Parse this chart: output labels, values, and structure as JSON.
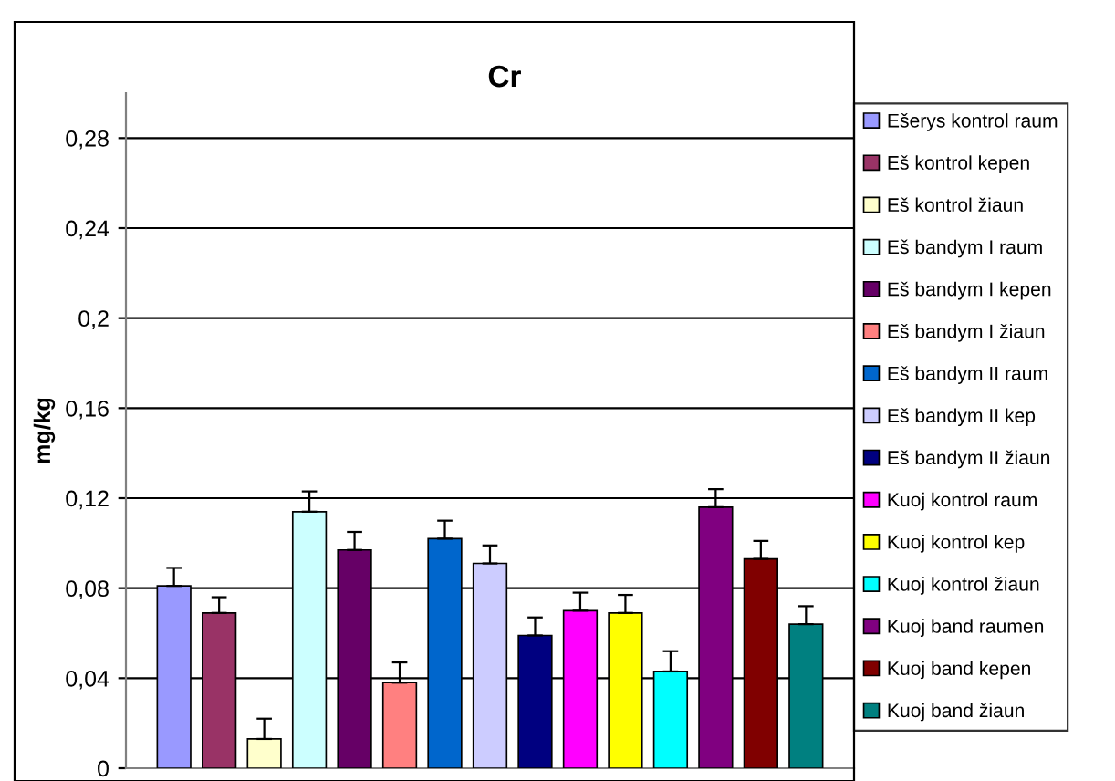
{
  "chart_data": {
    "type": "bar",
    "title": "Cr",
    "ylabel": "mg/kg",
    "categories": [
      null
    ],
    "series": [
      {
        "name": "Ešerys kontrol raum",
        "color": "#9999ff",
        "values": [
          0.081
        ],
        "errors": [
          [
            0.081,
            0.089
          ]
        ]
      },
      {
        "name": "Eš kontrol kepen",
        "color": "#993366",
        "values": [
          0.069
        ],
        "errors": [
          [
            0.069,
            0.076
          ]
        ]
      },
      {
        "name": "Eš kontrol žiaun",
        "color": "#ffffcc",
        "values": [
          0.013
        ],
        "errors": [
          [
            0.013,
            0.022
          ]
        ]
      },
      {
        "name": "Eš bandym I raum",
        "color": "#ccffff",
        "values": [
          0.114
        ],
        "errors": [
          [
            0.114,
            0.123
          ]
        ]
      },
      {
        "name": "Eš bandym I kepen",
        "color": "#660066",
        "values": [
          0.097
        ],
        "errors": [
          [
            0.097,
            0.105
          ]
        ]
      },
      {
        "name": "Eš bandym I žiaun",
        "color": "#ff8080",
        "values": [
          0.038
        ],
        "errors": [
          [
            0.038,
            0.047
          ]
        ]
      },
      {
        "name": "Eš bandym II raum",
        "color": "#0066cc",
        "values": [
          0.102
        ],
        "errors": [
          [
            0.102,
            0.11
          ]
        ]
      },
      {
        "name": "Eš bandym II kep",
        "color": "#ccccff",
        "values": [
          0.091
        ],
        "errors": [
          [
            0.091,
            0.099
          ]
        ]
      },
      {
        "name": "Eš bandym II žiaun",
        "color": "#000080",
        "values": [
          0.059
        ],
        "errors": [
          [
            0.059,
            0.067
          ]
        ]
      },
      {
        "name": "Kuoj kontrol raum",
        "color": "#ff00ff",
        "values": [
          0.07
        ],
        "errors": [
          [
            0.07,
            0.078
          ]
        ]
      },
      {
        "name": "Kuoj kontrol kep",
        "color": "#ffff00",
        "values": [
          0.069
        ],
        "errors": [
          [
            0.069,
            0.077
          ]
        ]
      },
      {
        "name": "Kuoj kontrol žiaun",
        "color": "#00ffff",
        "values": [
          0.043
        ],
        "errors": [
          [
            0.043,
            0.052
          ]
        ]
      },
      {
        "name": "Kuoj band raumen",
        "color": "#800080",
        "values": [
          0.116
        ],
        "errors": [
          [
            0.116,
            0.124
          ]
        ]
      },
      {
        "name": "Kuoj band kepen",
        "color": "#800000",
        "values": [
          0.093
        ],
        "errors": [
          [
            0.093,
            0.101
          ]
        ]
      },
      {
        "name": "Kuoj band žiaun",
        "color": "#008080",
        "values": [
          0.064
        ],
        "errors": [
          [
            0.064,
            0.072
          ]
        ]
      }
    ],
    "ylim": [
      0,
      0.3
    ],
    "yticks": [
      0,
      {
        "value": 0.04,
        "label": "0,04"
      },
      {
        "value": 0.08,
        "label": "0,08"
      },
      {
        "value": 0.12,
        "label": "0,12"
      },
      {
        "value": 0.16,
        "label": "0,16"
      },
      {
        "value": 0.2,
        "label": "0,2"
      },
      {
        "value": 0.24,
        "label": "0,24"
      },
      {
        "value": 0.28,
        "label": "0,28"
      }
    ],
    "grid": "y",
    "legend": "right",
    "tick_labels": "y"
  }
}
